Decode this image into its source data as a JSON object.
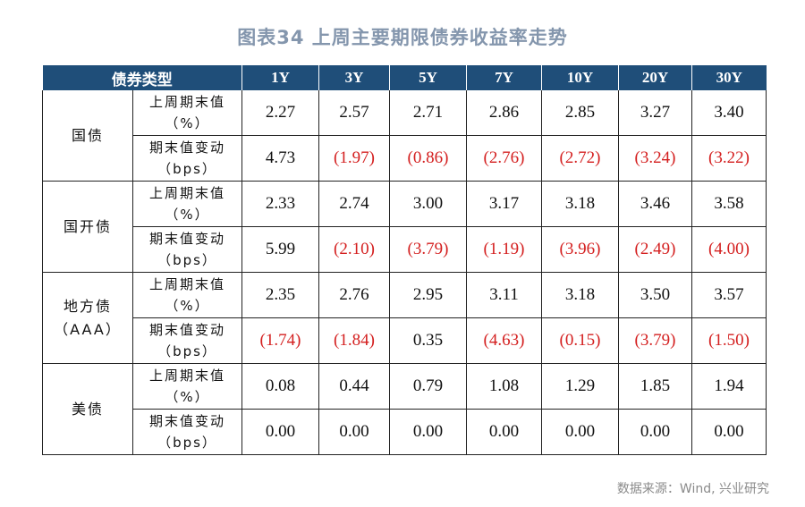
{
  "title": "图表34  上周主要期限债券收益率走势",
  "source": "数据来源：Wind, 兴业研究",
  "colors": {
    "header_bg": "#1f4e79",
    "title": "#8496ad",
    "negative": "#d42020"
  },
  "table": {
    "headers": [
      "债券类型",
      "1Y",
      "3Y",
      "5Y",
      "7Y",
      "10Y",
      "20Y",
      "30Y"
    ],
    "groups": [
      {
        "type_lines": [
          "国债"
        ],
        "rows": [
          {
            "metric_lines": [
              "上周期末值",
              "（%）"
            ],
            "values": [
              "2.27",
              "2.57",
              "2.71",
              "2.86",
              "2.85",
              "3.27",
              "3.40"
            ]
          },
          {
            "metric_lines": [
              "期末值变动",
              "（bps）"
            ],
            "values": [
              "4.73",
              "(1.97)",
              "(0.86)",
              "(2.76)",
              "(2.72)",
              "(3.24)",
              "(3.22)"
            ]
          }
        ]
      },
      {
        "type_lines": [
          "国开债"
        ],
        "rows": [
          {
            "metric_lines": [
              "上周期末值",
              "（%）"
            ],
            "values": [
              "2.33",
              "2.74",
              "3.00",
              "3.17",
              "3.18",
              "3.46",
              "3.58"
            ]
          },
          {
            "metric_lines": [
              "期末值变动",
              "（bps）"
            ],
            "values": [
              "5.99",
              "(2.10)",
              "(3.79)",
              "(1.19)",
              "(3.96)",
              "(2.49)",
              "(4.00)"
            ]
          }
        ]
      },
      {
        "type_lines": [
          "地方债",
          "（AAA）"
        ],
        "rows": [
          {
            "metric_lines": [
              "上周期末值",
              "（%）"
            ],
            "values": [
              "2.35",
              "2.76",
              "2.95",
              "3.11",
              "3.18",
              "3.50",
              "3.57"
            ]
          },
          {
            "metric_lines": [
              "期末值变动",
              "（bps）"
            ],
            "values": [
              "(1.74)",
              "(1.84)",
              "0.35",
              "(4.63)",
              "(0.15)",
              "(3.79)",
              "(1.50)"
            ]
          }
        ]
      },
      {
        "type_lines": [
          "美债"
        ],
        "rows": [
          {
            "metric_lines": [
              "上周期末值",
              "（%）"
            ],
            "values": [
              "0.08",
              "0.44",
              "0.79",
              "1.08",
              "1.29",
              "1.85",
              "1.94"
            ]
          },
          {
            "metric_lines": [
              "期末值变动",
              "（bps）"
            ],
            "values": [
              "0.00",
              "0.00",
              "0.00",
              "0.00",
              "0.00",
              "0.00",
              "0.00"
            ]
          }
        ]
      }
    ]
  }
}
